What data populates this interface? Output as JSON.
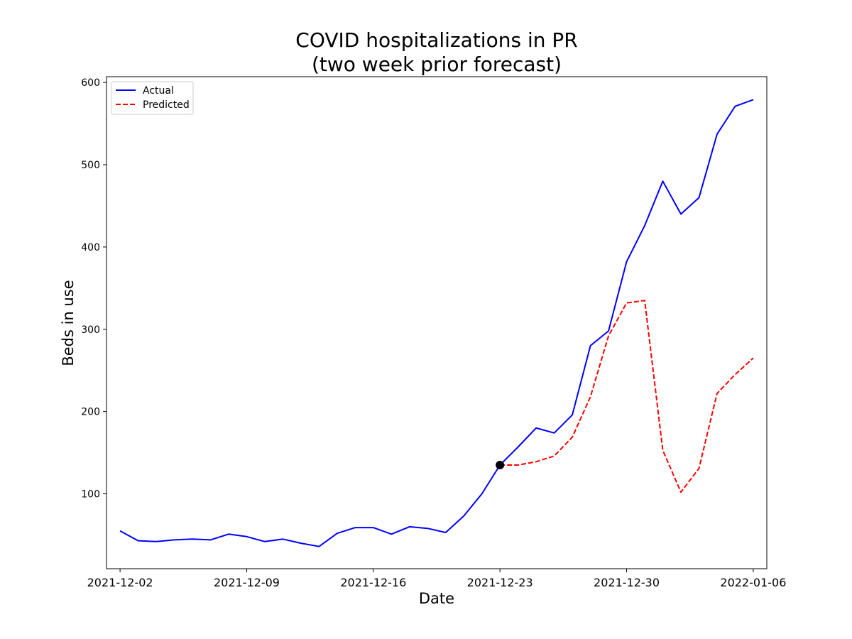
{
  "chart_data": {
    "type": "line",
    "title_lines": [
      "COVID hospitalizations in PR",
      "(two week prior forecast)"
    ],
    "xlabel": "Date",
    "ylabel": "Beds in use",
    "x_tick_labels": [
      "2021-12-02",
      "2021-12-09",
      "2021-12-16",
      "2021-12-23",
      "2021-12-30",
      "2022-01-06"
    ],
    "x_tick_dates": [
      "2021-12-02",
      "2021-12-09",
      "2021-12-16",
      "2021-12-23",
      "2021-12-30",
      "2022-01-06"
    ],
    "xlim": [
      "2021-12-00T06:00",
      "2022-01-07T18:00"
    ],
    "y_ticks": [
      100,
      200,
      300,
      400,
      500,
      600
    ],
    "ylim": [
      9,
      607
    ],
    "legend_position": "upper-left",
    "series": [
      {
        "name": "Actual",
        "color": "#0000ff",
        "style": "solid",
        "x": [
          "2021-12-02",
          "2021-12-03",
          "2021-12-04",
          "2021-12-05",
          "2021-12-06",
          "2021-12-07",
          "2021-12-08",
          "2021-12-09",
          "2021-12-10",
          "2021-12-11",
          "2021-12-12",
          "2021-12-13",
          "2021-12-14",
          "2021-12-15",
          "2021-12-16",
          "2021-12-17",
          "2021-12-18",
          "2021-12-19",
          "2021-12-20",
          "2021-12-21",
          "2021-12-22",
          "2021-12-23",
          "2021-12-24",
          "2021-12-25",
          "2021-12-26",
          "2021-12-27",
          "2021-12-28",
          "2021-12-29",
          "2021-12-30",
          "2021-12-31",
          "2022-01-01",
          "2022-01-02",
          "2022-01-03",
          "2022-01-04",
          "2022-01-05",
          "2022-01-06"
        ],
        "values": [
          55,
          43,
          42,
          44,
          45,
          44,
          51,
          48,
          42,
          45,
          40,
          36,
          52,
          59,
          59,
          51,
          60,
          58,
          53,
          73,
          100,
          135,
          157,
          180,
          174,
          196,
          280,
          298,
          382,
          426,
          480,
          440,
          460,
          537,
          571,
          579
        ]
      },
      {
        "name": "Predicted",
        "color": "#ff0000",
        "style": "dashed",
        "x": [
          "2021-12-23",
          "2021-12-24",
          "2021-12-25",
          "2021-12-26",
          "2021-12-27",
          "2021-12-28",
          "2021-12-29",
          "2021-12-30",
          "2021-12-31",
          "2022-01-01",
          "2022-01-02",
          "2022-01-03",
          "2022-01-04",
          "2022-01-05",
          "2022-01-06"
        ],
        "values": [
          135,
          135,
          139,
          146,
          169,
          218,
          292,
          332,
          335,
          153,
          102,
          131,
          222,
          245,
          265
        ]
      }
    ],
    "marker": {
      "x": "2021-12-23",
      "y": 135,
      "color": "#000000"
    }
  }
}
